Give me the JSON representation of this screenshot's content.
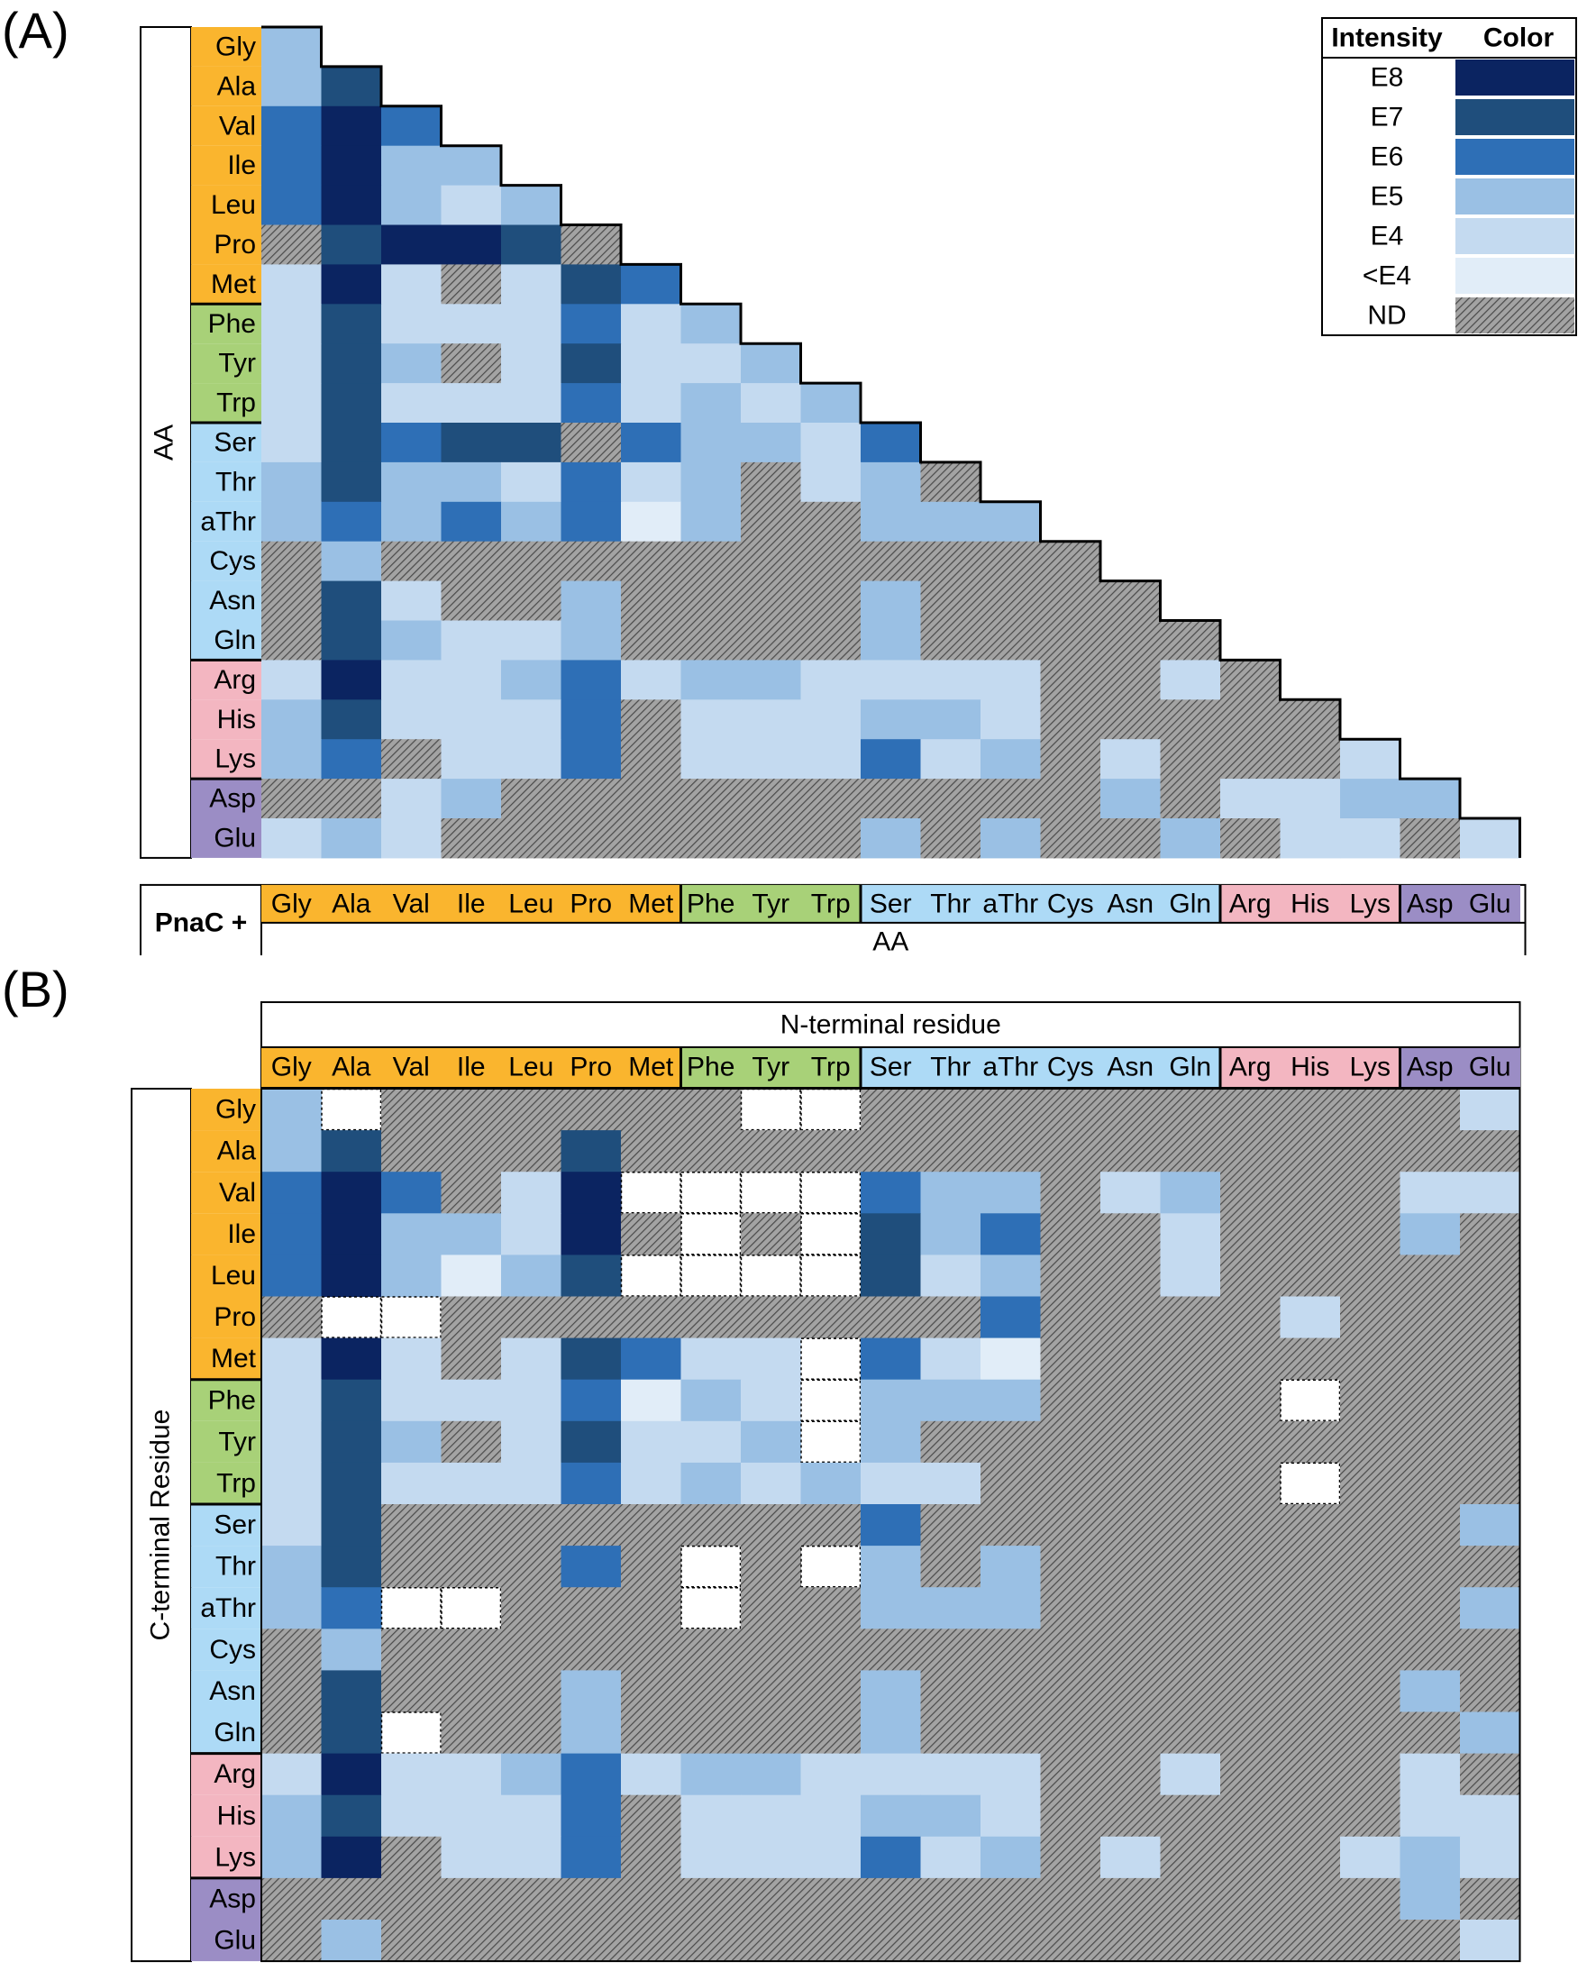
{
  "panels": {
    "a_label": "(A)",
    "b_label": "(B)"
  },
  "legend": {
    "intensity_header": "Intensity",
    "color_header": "Color",
    "entries": [
      {
        "label": "E8",
        "color": "#0b2461"
      },
      {
        "label": "E7",
        "color": "#1f4e7c"
      },
      {
        "label": "E6",
        "color": "#2e6fb6"
      },
      {
        "label": "E5",
        "color": "#9ac0e4"
      },
      {
        "label": "E4",
        "color": "#c4daf0"
      },
      {
        "label": "<E4",
        "color": "#e1edf8"
      },
      {
        "label": "ND",
        "color": "hatch"
      }
    ]
  },
  "groups": [
    {
      "members": [
        "Gly",
        "Ala",
        "Val",
        "Ile",
        "Leu",
        "Pro",
        "Met"
      ],
      "color": "#fab52e"
    },
    {
      "members": [
        "Phe",
        "Tyr",
        "Trp"
      ],
      "color": "#a8d178"
    },
    {
      "members": [
        "Ser",
        "Thr",
        "aThr",
        "Cys",
        "Asn",
        "Gln"
      ],
      "color": "#addaf6"
    },
    {
      "members": [
        "Arg",
        "His",
        "Lys"
      ],
      "color": "#f3b6c1"
    },
    {
      "members": [
        "Asp",
        "Glu"
      ],
      "color": "#9b8dc5"
    }
  ],
  "chart_data": [
    {
      "type": "heatmap",
      "panel": "A",
      "row_axis_label": "AA",
      "col_axis_label": "AA",
      "col_prefix_label": "PnaC +",
      "rows": [
        "Gly",
        "Ala",
        "Val",
        "Ile",
        "Leu",
        "Pro",
        "Met",
        "Phe",
        "Tyr",
        "Trp",
        "Ser",
        "Thr",
        "aThr",
        "Cys",
        "Asn",
        "Gln",
        "Arg",
        "His",
        "Lys",
        "Asp",
        "Glu"
      ],
      "cols": [
        "Gly",
        "Ala",
        "Val",
        "Ile",
        "Leu",
        "Pro",
        "Met",
        "Phe",
        "Tyr",
        "Trp",
        "Ser",
        "Thr",
        "aThr",
        "Cys",
        "Asn",
        "Gln",
        "Arg",
        "His",
        "Lys",
        "Asp",
        "Glu"
      ],
      "cells": [
        [
          "E5"
        ],
        [
          "E5",
          "E7"
        ],
        [
          "E6",
          "E8",
          "E6"
        ],
        [
          "E6",
          "E8",
          "E5",
          "E5"
        ],
        [
          "E6",
          "E8",
          "E5",
          "E4",
          "E5"
        ],
        [
          "ND",
          "E7",
          "E8",
          "E8",
          "E7",
          "ND"
        ],
        [
          "E4",
          "E8",
          "E4",
          "ND",
          "E4",
          "E7",
          "E6"
        ],
        [
          "E4",
          "E7",
          "E4",
          "E4",
          "E4",
          "E6",
          "E4",
          "E5"
        ],
        [
          "E4",
          "E7",
          "E5",
          "ND",
          "E4",
          "E7",
          "E4",
          "E4",
          "E5"
        ],
        [
          "E4",
          "E7",
          "E4",
          "E4",
          "E4",
          "E6",
          "E4",
          "E5",
          "E4",
          "E5"
        ],
        [
          "E4",
          "E7",
          "E6",
          "E7",
          "E7",
          "ND",
          "E6",
          "E5",
          "E5",
          "E4",
          "E6"
        ],
        [
          "E5",
          "E7",
          "E5",
          "E5",
          "E4",
          "E6",
          "E4",
          "E5",
          "ND",
          "E4",
          "E5",
          "ND"
        ],
        [
          "E5",
          "E6",
          "E5",
          "E6",
          "E5",
          "E6",
          "<E4",
          "E5",
          "ND",
          "ND",
          "E5",
          "E5",
          "E5"
        ],
        [
          "ND",
          "E5",
          "ND",
          "ND",
          "ND",
          "ND",
          "ND",
          "ND",
          "ND",
          "ND",
          "ND",
          "ND",
          "ND",
          "ND"
        ],
        [
          "ND",
          "E7",
          "E4",
          "ND",
          "ND",
          "E5",
          "ND",
          "ND",
          "ND",
          "ND",
          "E5",
          "ND",
          "ND",
          "ND",
          "ND"
        ],
        [
          "ND",
          "E7",
          "E5",
          "E4",
          "E4",
          "E5",
          "ND",
          "ND",
          "ND",
          "ND",
          "E5",
          "ND",
          "ND",
          "ND",
          "ND",
          "ND"
        ],
        [
          "E4",
          "E8",
          "E4",
          "E4",
          "E5",
          "E6",
          "E4",
          "E5",
          "E5",
          "E4",
          "E4",
          "E4",
          "E4",
          "ND",
          "ND",
          "E4",
          "ND"
        ],
        [
          "E5",
          "E7",
          "E4",
          "E4",
          "E4",
          "E6",
          "ND",
          "E4",
          "E4",
          "E4",
          "E5",
          "E5",
          "E4",
          "ND",
          "ND",
          "ND",
          "ND",
          "ND"
        ],
        [
          "E5",
          "E6",
          "ND",
          "E4",
          "E4",
          "E6",
          "ND",
          "E4",
          "E4",
          "E4",
          "E6",
          "E4",
          "E5",
          "ND",
          "E4",
          "ND",
          "ND",
          "ND",
          "E4"
        ],
        [
          "ND",
          "ND",
          "E4",
          "E5",
          "ND",
          "ND",
          "ND",
          "ND",
          "ND",
          "ND",
          "ND",
          "ND",
          "ND",
          "ND",
          "E5",
          "ND",
          "E4",
          "E4",
          "E5",
          "E5"
        ],
        [
          "E4",
          "E5",
          "E4",
          "ND",
          "ND",
          "ND",
          "ND",
          "ND",
          "ND",
          "ND",
          "E5",
          "ND",
          "E5",
          "ND",
          "ND",
          "E5",
          "ND",
          "E4",
          "E4",
          "ND",
          "E4"
        ]
      ]
    },
    {
      "type": "heatmap",
      "panel": "B",
      "row_axis_label": "C-terminal Residue",
      "col_axis_label": "N-terminal residue",
      "rows": [
        "Gly",
        "Ala",
        "Val",
        "Ile",
        "Leu",
        "Pro",
        "Met",
        "Phe",
        "Tyr",
        "Trp",
        "Ser",
        "Thr",
        "aThr",
        "Cys",
        "Asn",
        "Gln",
        "Arg",
        "His",
        "Lys",
        "Asp",
        "Glu"
      ],
      "cols": [
        "Gly",
        "Ala",
        "Val",
        "Ile",
        "Leu",
        "Pro",
        "Met",
        "Phe",
        "Tyr",
        "Trp",
        "Ser",
        "Thr",
        "aThr",
        "Cys",
        "Asn",
        "Gln",
        "Arg",
        "His",
        "Lys",
        "Asp",
        "Glu"
      ],
      "cells": [
        [
          "E5",
          "W",
          "ND",
          "ND",
          "ND",
          "ND",
          "ND",
          "ND",
          "W",
          "W",
          "ND",
          "ND",
          "ND",
          "ND",
          "ND",
          "ND",
          "ND",
          "ND",
          "ND",
          "ND",
          "E4"
        ],
        [
          "E5",
          "E7",
          "ND",
          "ND",
          "ND",
          "E7",
          "ND",
          "ND",
          "ND",
          "ND",
          "ND",
          "ND",
          "ND",
          "ND",
          "ND",
          "ND",
          "ND",
          "ND",
          "ND",
          "ND",
          "ND"
        ],
        [
          "E6",
          "E8",
          "E6",
          "ND",
          "E4",
          "E8",
          "W",
          "W",
          "W",
          "W",
          "E6",
          "E5",
          "E5",
          "ND",
          "E4",
          "E5",
          "ND",
          "ND",
          "ND",
          "E4",
          "E4"
        ],
        [
          "E6",
          "E8",
          "E5",
          "E5",
          "E4",
          "E8",
          "ND",
          "W",
          "ND",
          "W",
          "E7",
          "E5",
          "E6",
          "ND",
          "ND",
          "E4",
          "ND",
          "ND",
          "ND",
          "E5",
          "ND"
        ],
        [
          "E6",
          "E8",
          "E5",
          "<E4",
          "E5",
          "E7",
          "W",
          "W",
          "W",
          "W",
          "E7",
          "E4",
          "E5",
          "ND",
          "ND",
          "E4",
          "ND",
          "ND",
          "ND",
          "ND",
          "ND"
        ],
        [
          "ND",
          "W",
          "W",
          "ND",
          "ND",
          "ND",
          "ND",
          "ND",
          "ND",
          "ND",
          "ND",
          "ND",
          "E6",
          "ND",
          "ND",
          "ND",
          "ND",
          "E4",
          "ND",
          "ND",
          "ND"
        ],
        [
          "E4",
          "E8",
          "E4",
          "ND",
          "E4",
          "E7",
          "E6",
          "E4",
          "E4",
          "W",
          "E6",
          "E4",
          "<E4",
          "ND",
          "ND",
          "ND",
          "ND",
          "ND",
          "ND",
          "ND",
          "ND"
        ],
        [
          "E4",
          "E7",
          "E4",
          "E4",
          "E4",
          "E6",
          "<E4",
          "E5",
          "E4",
          "W",
          "E5",
          "E5",
          "E5",
          "ND",
          "ND",
          "ND",
          "ND",
          "W",
          "ND",
          "ND",
          "ND"
        ],
        [
          "E4",
          "E7",
          "E5",
          "ND",
          "E4",
          "E7",
          "E4",
          "E4",
          "E5",
          "W",
          "E5",
          "ND",
          "ND",
          "ND",
          "ND",
          "ND",
          "ND",
          "ND",
          "ND",
          "ND",
          "ND"
        ],
        [
          "E4",
          "E7",
          "E4",
          "E4",
          "E4",
          "E6",
          "E4",
          "E5",
          "E4",
          "E5",
          "E4",
          "E4",
          "ND",
          "ND",
          "ND",
          "ND",
          "ND",
          "W",
          "ND",
          "ND",
          "ND"
        ],
        [
          "E4",
          "E7",
          "ND",
          "ND",
          "ND",
          "ND",
          "ND",
          "ND",
          "ND",
          "ND",
          "E6",
          "ND",
          "ND",
          "ND",
          "ND",
          "ND",
          "ND",
          "ND",
          "ND",
          "ND",
          "E5"
        ],
        [
          "E5",
          "E7",
          "ND",
          "ND",
          "ND",
          "E6",
          "ND",
          "W",
          "ND",
          "W",
          "E5",
          "ND",
          "E5",
          "ND",
          "ND",
          "ND",
          "ND",
          "ND",
          "ND",
          "ND",
          "ND"
        ],
        [
          "E5",
          "E6",
          "W",
          "W",
          "ND",
          "ND",
          "ND",
          "W",
          "ND",
          "ND",
          "E5",
          "E5",
          "E5",
          "ND",
          "ND",
          "ND",
          "ND",
          "ND",
          "ND",
          "ND",
          "E5"
        ],
        [
          "ND",
          "E5",
          "ND",
          "ND",
          "ND",
          "ND",
          "ND",
          "ND",
          "ND",
          "ND",
          "ND",
          "ND",
          "ND",
          "ND",
          "ND",
          "ND",
          "ND",
          "ND",
          "ND",
          "ND",
          "ND"
        ],
        [
          "ND",
          "E7",
          "ND",
          "ND",
          "ND",
          "E5",
          "ND",
          "ND",
          "ND",
          "ND",
          "E5",
          "ND",
          "ND",
          "ND",
          "ND",
          "ND",
          "ND",
          "ND",
          "ND",
          "E5",
          "ND"
        ],
        [
          "ND",
          "E7",
          "W",
          "ND",
          "ND",
          "E5",
          "ND",
          "ND",
          "ND",
          "ND",
          "E5",
          "ND",
          "ND",
          "ND",
          "ND",
          "ND",
          "ND",
          "ND",
          "ND",
          "ND",
          "E5"
        ],
        [
          "E4",
          "E8",
          "E4",
          "E4",
          "E5",
          "E6",
          "E4",
          "E5",
          "E5",
          "E4",
          "E4",
          "E4",
          "E4",
          "ND",
          "ND",
          "E4",
          "ND",
          "ND",
          "ND",
          "E4",
          "ND"
        ],
        [
          "E5",
          "E7",
          "E4",
          "E4",
          "E4",
          "E6",
          "ND",
          "E4",
          "E4",
          "E4",
          "E5",
          "E5",
          "E4",
          "ND",
          "ND",
          "ND",
          "ND",
          "ND",
          "ND",
          "E4",
          "E4"
        ],
        [
          "E5",
          "E8",
          "ND",
          "E4",
          "E4",
          "E6",
          "ND",
          "E4",
          "E4",
          "E4",
          "E6",
          "E4",
          "E5",
          "ND",
          "E4",
          "ND",
          "ND",
          "ND",
          "E4",
          "E5",
          "E4"
        ],
        [
          "ND",
          "ND",
          "ND",
          "ND",
          "ND",
          "ND",
          "ND",
          "ND",
          "ND",
          "ND",
          "ND",
          "ND",
          "ND",
          "ND",
          "ND",
          "ND",
          "ND",
          "ND",
          "ND",
          "E5",
          "ND"
        ],
        [
          "ND",
          "E5",
          "ND",
          "ND",
          "ND",
          "ND",
          "ND",
          "ND",
          "ND",
          "ND",
          "ND",
          "ND",
          "ND",
          "ND",
          "ND",
          "ND",
          "ND",
          "ND",
          "ND",
          "ND",
          "E4"
        ]
      ]
    }
  ]
}
